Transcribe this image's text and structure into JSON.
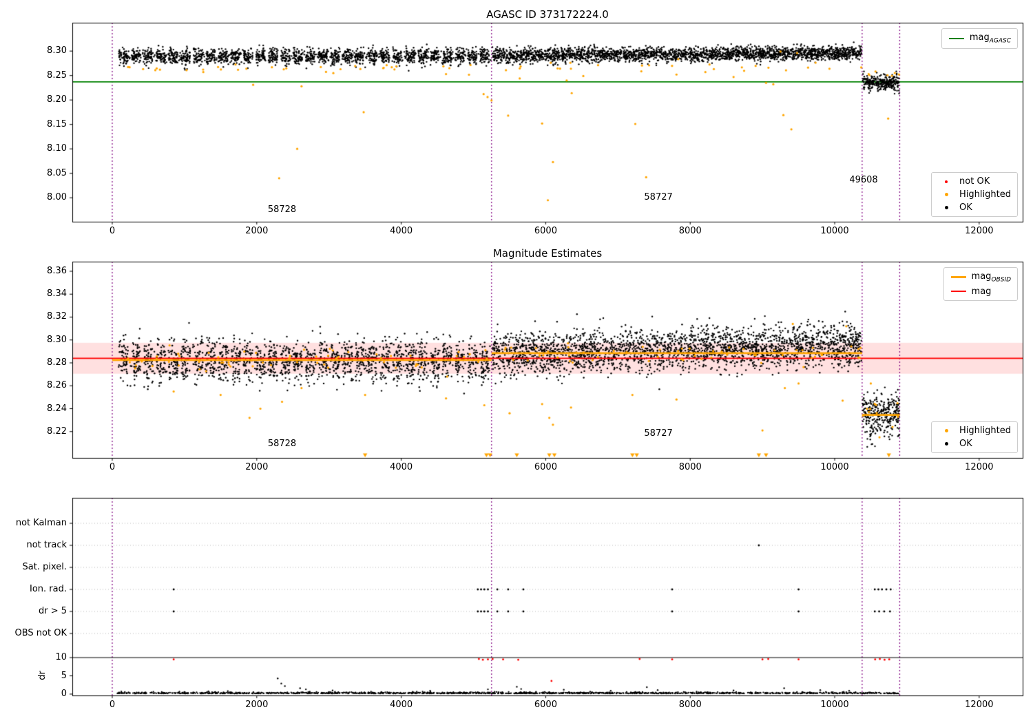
{
  "colors": {
    "ok": "#000000",
    "highlighted": "#ffa500",
    "not_ok": "#ff0000",
    "mag_agasc_line": "#008000",
    "mag_line": "#ff0000",
    "mag_band": "rgba(255,0,0,0.12)",
    "mag_obsid_line": "#ffa500",
    "vline": "#800080",
    "grid": "#b8b8b8",
    "spine": "#000000"
  },
  "chart_data": [
    {
      "id": "plot1",
      "type": "scatter",
      "title": "AGASC ID 373172224.0",
      "xlim": [
        -553,
        12602
      ],
      "ylim": [
        7.951,
        8.358
      ],
      "xticks": [
        0,
        2000,
        4000,
        6000,
        8000,
        10000,
        12000
      ],
      "yticks": [
        8.0,
        8.05,
        8.1,
        8.15,
        8.2,
        8.25,
        8.3
      ],
      "vlines": [
        0,
        5250,
        10380,
        10900
      ],
      "mag_agasc": 8.237,
      "legend_top": [
        {
          "main": "mag",
          "sub": "AGASC",
          "marker": "line",
          "color": "#008000",
          "lw": 2
        }
      ],
      "legend_bottom": [
        {
          "label": "not OK",
          "marker": "dot",
          "color": "#ff0000",
          "size": 4
        },
        {
          "label": "Highlighted",
          "marker": "dot",
          "color": "#ffa500",
          "size": 5
        },
        {
          "label": "OK",
          "marker": "dot",
          "color": "#000000",
          "size": 5
        }
      ],
      "annotations": [
        {
          "text": "58728",
          "x": 2350,
          "y": 7.975
        },
        {
          "text": "58727",
          "x": 7560,
          "y": 8.0
        },
        {
          "text": "49608",
          "x": 10400,
          "y": 8.036
        }
      ],
      "ok_segments": [
        {
          "kind": "clumped",
          "x0": 70,
          "x1": 5240,
          "clumps": 30,
          "halfwidth": 62,
          "per_clump": 52,
          "uniform_n": 420,
          "mean": 8.2895,
          "sd": 0.0082
        },
        {
          "kind": "trend",
          "x0": 5262,
          "x1": 10372,
          "n": 2500,
          "mean0": 8.2905,
          "mean1": 8.2965,
          "sd": 0.0072
        },
        {
          "kind": "flat",
          "x0": 10388,
          "x1": 10892,
          "n": 280,
          "mean": 8.2355,
          "sd": 0.008
        }
      ],
      "highlighted_band": [
        {
          "n": 30,
          "x0": 100,
          "x1": 5240,
          "mean": 8.266,
          "sd": 0.006
        },
        {
          "n": 25,
          "x0": 5262,
          "x1": 10372,
          "mean": 8.269,
          "sd": 0.006
        },
        {
          "n": 6,
          "x0": 10390,
          "x1": 10890,
          "mean": 8.252,
          "sd": 0.004
        }
      ],
      "highlighted_outliers": [
        [
          1950,
          8.231
        ],
        [
          2310,
          8.04
        ],
        [
          2560,
          8.1
        ],
        [
          2620,
          8.228
        ],
        [
          3480,
          8.175
        ],
        [
          5140,
          8.212
        ],
        [
          5195,
          8.206
        ],
        [
          5250,
          8.199
        ],
        [
          5480,
          8.168
        ],
        [
          5950,
          8.152
        ],
        [
          6030,
          7.995
        ],
        [
          6100,
          8.073
        ],
        [
          6290,
          8.24
        ],
        [
          6360,
          8.214
        ],
        [
          7240,
          8.151
        ],
        [
          7390,
          8.042
        ],
        [
          8600,
          8.247
        ],
        [
          9150,
          8.232
        ],
        [
          9290,
          8.169
        ],
        [
          9400,
          8.14
        ],
        [
          10740,
          8.162
        ],
        [
          4620,
          8.253
        ],
        [
          660,
          8.262
        ],
        [
          1260,
          8.257
        ],
        [
          3060,
          8.255
        ],
        [
          7810,
          8.252
        ],
        [
          8210,
          8.257
        ],
        [
          10480,
          8.251
        ],
        [
          9050,
          8.235
        ],
        [
          5640,
          8.244
        ],
        [
          6520,
          8.249
        ],
        [
          9250,
          8.299
        ],
        [
          9480,
          8.296
        ]
      ]
    },
    {
      "id": "plot2",
      "type": "scatter",
      "title": "Magnitude Estimates",
      "xlim": [
        -553,
        12602
      ],
      "ylim": [
        8.197,
        8.3684
      ],
      "xticks": [
        0,
        2000,
        4000,
        6000,
        8000,
        10000,
        12000
      ],
      "yticks": [
        8.22,
        8.24,
        8.26,
        8.28,
        8.3,
        8.32,
        8.34,
        8.36
      ],
      "vlines": [
        0,
        5250,
        10380,
        10900
      ],
      "mag": 8.284,
      "mag_band": [
        8.2705,
        8.2975
      ],
      "mag_obsid_segments": [
        {
          "x0": 0,
          "x1": 5250,
          "y": 8.2825
        },
        {
          "x0": 5250,
          "x1": 10380,
          "y": 8.2885
        },
        {
          "x0": 10380,
          "x1": 10900,
          "y": 8.2345
        }
      ],
      "legend_top": [
        {
          "main": "mag",
          "sub": "OBSID",
          "marker": "line",
          "color": "#ffa500",
          "lw": 3
        },
        {
          "label": "mag",
          "marker": "line",
          "color": "#ff0000",
          "lw": 2
        }
      ],
      "legend_bottom": [
        {
          "label": "Highlighted",
          "marker": "dot",
          "color": "#ffa500",
          "size": 5
        },
        {
          "label": "OK",
          "marker": "dot",
          "color": "#000000",
          "size": 5
        }
      ],
      "annotations": [
        {
          "text": "58728",
          "x": 2350,
          "y": 8.209
        },
        {
          "text": "58727",
          "x": 7560,
          "y": 8.218
        }
      ],
      "ok_segments": [
        {
          "kind": "clumped",
          "x0": 70,
          "x1": 5240,
          "clumps": 30,
          "halfwidth": 62,
          "per_clump": 50,
          "uniform_n": 420,
          "mean": 8.2815,
          "sd": 0.0095
        },
        {
          "kind": "trend",
          "x0": 5262,
          "x1": 10372,
          "n": 2500,
          "mean0": 8.2875,
          "mean1": 8.296,
          "sd": 0.0092
        },
        {
          "kind": "flat",
          "x0": 10388,
          "x1": 10892,
          "n": 300,
          "mean": 8.234,
          "sd": 0.0105
        }
      ],
      "highlighted_band": [
        {
          "n": 70,
          "x0": 100,
          "x1": 5240,
          "mean": 8.2825,
          "sd": 0.005
        },
        {
          "n": 60,
          "x0": 5262,
          "x1": 10372,
          "mean": 8.2885,
          "sd": 0.005
        },
        {
          "n": 10,
          "x0": 10390,
          "x1": 10890,
          "mean": 8.2375,
          "sd": 0.005
        }
      ],
      "highlighted_outliers": [
        [
          1900,
          8.232
        ],
        [
          2350,
          8.246
        ],
        [
          2620,
          8.258
        ],
        [
          3500,
          8.252
        ],
        [
          4620,
          8.249
        ],
        [
          5150,
          8.243
        ],
        [
          5500,
          8.236
        ],
        [
          5950,
          8.244
        ],
        [
          6050,
          8.232
        ],
        [
          6100,
          8.226
        ],
        [
          7200,
          8.252
        ],
        [
          7810,
          8.248
        ],
        [
          9000,
          8.221
        ],
        [
          9310,
          8.258
        ],
        [
          9500,
          8.262
        ],
        [
          10110,
          8.247
        ],
        [
          850,
          8.255
        ],
        [
          1500,
          8.252
        ],
        [
          10500,
          8.262
        ],
        [
          10620,
          8.215
        ],
        [
          10800,
          8.224
        ],
        [
          6350,
          8.241
        ],
        [
          2050,
          8.24
        ],
        [
          9420,
          8.314
        ],
        [
          10160,
          8.312
        ]
      ],
      "clipped_low_triangles": [
        3500,
        5180,
        5230,
        5600,
        6050,
        6120,
        7200,
        7260,
        8950,
        9050,
        10750
      ]
    },
    {
      "id": "plot3",
      "type": "flags",
      "xticks": [
        0,
        2000,
        4000,
        6000,
        8000,
        10000,
        12000
      ],
      "vlines": [
        0,
        5250,
        10380,
        10900
      ],
      "ylabel": "dr",
      "dr_ticks": [
        10,
        5,
        0
      ],
      "dr_threshold": 10,
      "flag_rows": [
        {
          "label": "not Kalman",
          "points": []
        },
        {
          "label": "not track",
          "points": [
            8950
          ]
        },
        {
          "label": "Sat. pixel.",
          "points": []
        },
        {
          "label": "Ion. rad.",
          "points": [
            850,
            5060,
            5105,
            5150,
            5200,
            5330,
            5480,
            5690,
            7750,
            9500,
            10555,
            10605,
            10655,
            10715,
            10775
          ]
        },
        {
          "label": "dr > 5",
          "points": [
            850,
            5060,
            5105,
            5150,
            5200,
            5330,
            5480,
            5690,
            7750,
            9500,
            10555,
            10615,
            10685,
            10765
          ]
        },
        {
          "label": "OBS not OK",
          "points": []
        }
      ],
      "red_dr_points": [
        [
          850,
          9.5
        ],
        [
          5075,
          9.6
        ],
        [
          5130,
          9.4
        ],
        [
          5200,
          9.5
        ],
        [
          5265,
          9.6
        ],
        [
          5410,
          9.5
        ],
        [
          5620,
          9.4
        ],
        [
          6080,
          3.6
        ],
        [
          7300,
          9.6
        ],
        [
          7750,
          9.5
        ],
        [
          9000,
          9.5
        ],
        [
          9080,
          9.6
        ],
        [
          9500,
          9.5
        ],
        [
          10560,
          9.5
        ],
        [
          10625,
          9.6
        ],
        [
          10690,
          9.4
        ],
        [
          10755,
          9.5
        ]
      ],
      "black_dr_bumps": [
        [
          2290,
          4.3
        ],
        [
          2340,
          2.9
        ],
        [
          2390,
          2.2
        ],
        [
          2600,
          1.6
        ],
        [
          2680,
          1.3
        ],
        [
          3050,
          1.0
        ],
        [
          4400,
          0.9
        ],
        [
          5600,
          2.0
        ],
        [
          5660,
          1.4
        ],
        [
          6250,
          1.2
        ],
        [
          6900,
          0.9
        ],
        [
          7400,
          1.9
        ],
        [
          7550,
          1.1
        ],
        [
          8600,
          1.0
        ],
        [
          9300,
          1.6
        ],
        [
          9800,
          1.1
        ],
        [
          10200,
          0.9
        ],
        [
          5200,
          1.3
        ],
        [
          1600,
          0.8
        ]
      ],
      "black_dr_band": {
        "n": 1500,
        "x0": 60,
        "x1": 10890,
        "base": 0.15,
        "spread": 0.18
      }
    }
  ]
}
